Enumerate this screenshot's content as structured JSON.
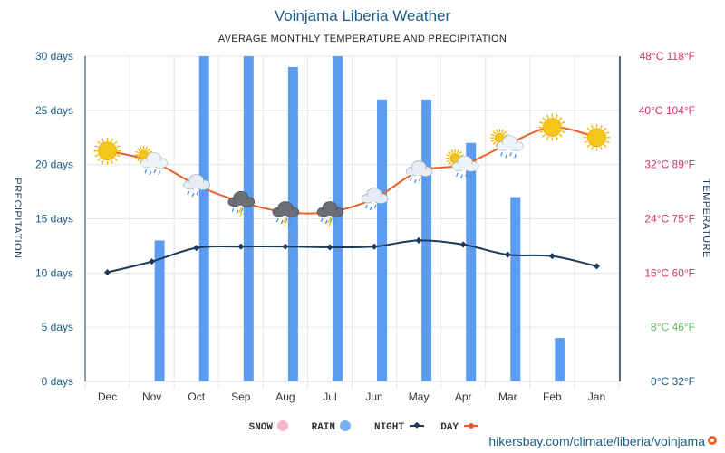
{
  "chart_data": {
    "type": "bar+line",
    "title": "Voinjama Liberia Weather",
    "subtitle": "AVERAGE MONTHLY TEMPERATURE AND PRECIPITATION",
    "categories": [
      "Jan",
      "Feb",
      "Mar",
      "Apr",
      "May",
      "Jun",
      "Jul",
      "Aug",
      "Sep",
      "Oct",
      "Nov",
      "Dec"
    ],
    "left_axis": {
      "label": "TEMPERATURE",
      "ticks": [
        "0°C 32°F",
        "8°C 46°F",
        "16°C 60°F",
        "24°C 75°F",
        "32°C 89°F",
        "40°C 104°F",
        "48°C 118°F"
      ],
      "ylim_c": [
        0,
        48
      ],
      "tick_colors": [
        "#1b5e86",
        "#5cb85c",
        "#d6336c",
        "#d6336c",
        "#d6336c",
        "#d6336c",
        "#d6336c"
      ]
    },
    "right_axis": {
      "label": "PRECIPITATION",
      "ticks": [
        "0 days",
        "5 days",
        "10 days",
        "15 days",
        "20 days",
        "25 days",
        "30 days"
      ],
      "ylim_days": [
        0,
        30
      ]
    },
    "series": [
      {
        "name": "DAY",
        "kind": "line",
        "unit": "°C",
        "color": "#e8612c",
        "values": [
          36,
          37.5,
          35,
          32,
          31,
          27,
          25,
          25,
          26.5,
          29,
          32.5,
          34
        ]
      },
      {
        "name": "NIGHT",
        "kind": "line",
        "unit": "°C",
        "color": "#1b3a5c",
        "values": [
          17,
          18.5,
          18.7,
          20.2,
          20.8,
          19.9,
          19.8,
          19.9,
          19.9,
          19.7,
          17.7,
          16.1
        ]
      },
      {
        "name": "RAIN",
        "kind": "bar",
        "unit": "days",
        "color": "#5b9bf0",
        "values": [
          0,
          4,
          17,
          22,
          26,
          26,
          30,
          29,
          30,
          30,
          13,
          0
        ]
      },
      {
        "name": "SNOW",
        "kind": "bar",
        "unit": "days",
        "color": "#f7b6cf",
        "values": [
          0,
          0,
          0,
          0,
          0,
          0,
          0,
          0,
          0,
          0,
          0,
          0
        ]
      }
    ],
    "weather_icons": [
      "sun",
      "sun",
      "sun-cloud-rain",
      "sun-cloud-rain",
      "cloud-rain",
      "cloud-rain",
      "storm",
      "storm",
      "storm",
      "cloud-rain",
      "sun-cloud-rain",
      "sun"
    ],
    "legend": [
      "DAY",
      "NIGHT",
      "RAIN",
      "SNOW"
    ],
    "legend_position": "bottom-center",
    "grid": true
  },
  "watermark": "hikersbay.com/climate/liberia/voinjama",
  "colors": {
    "grid": "#e6e6e6",
    "axis": "#1b3a5c",
    "sun": "#f5c518"
  }
}
